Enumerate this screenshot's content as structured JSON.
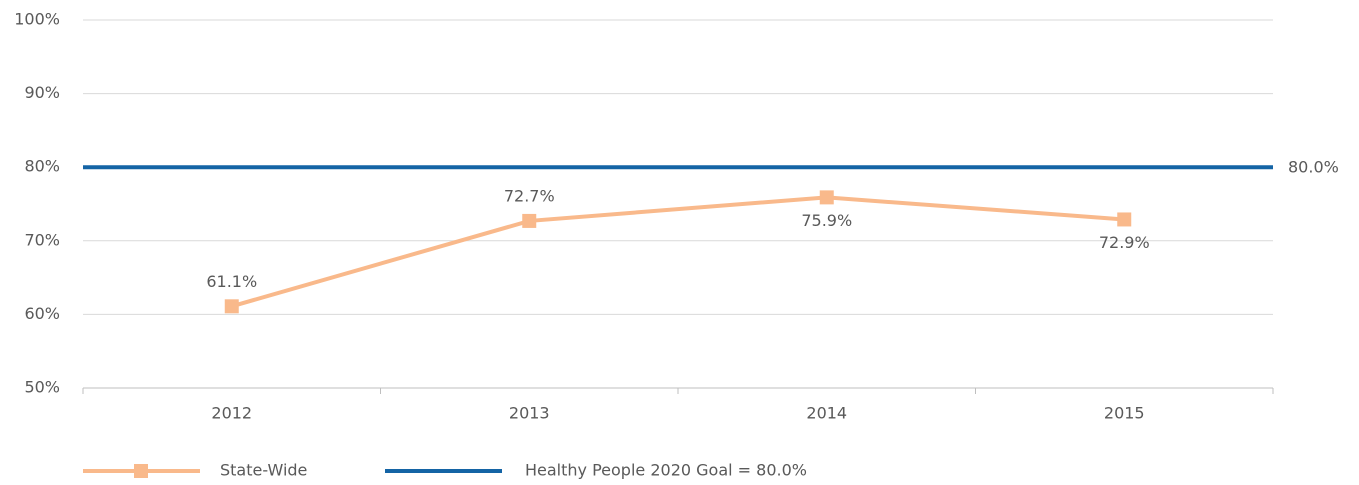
{
  "chart_data": {
    "type": "line",
    "categories": [
      "2012",
      "2013",
      "2014",
      "2015"
    ],
    "series": [
      {
        "name": "State-Wide",
        "color": "#f9b98b",
        "values": [
          61.1,
          72.7,
          75.9,
          72.9
        ],
        "value_labels": [
          "61.1%",
          "72.7%",
          "75.9%",
          "72.9%"
        ]
      }
    ],
    "reference_line": {
      "name": "Healthy People 2020 Goal = 80.0%",
      "value": 80,
      "value_label": "80.0%",
      "color": "#1464a5"
    },
    "ylim": [
      50,
      100
    ],
    "yticks": [
      {
        "value": 50,
        "label": "50%"
      },
      {
        "value": 60,
        "label": "60%"
      },
      {
        "value": 70,
        "label": "70%"
      },
      {
        "value": 80,
        "label": "80%"
      },
      {
        "value": 90,
        "label": "90%"
      },
      {
        "value": 100,
        "label": "100%"
      }
    ],
    "grid": true
  }
}
